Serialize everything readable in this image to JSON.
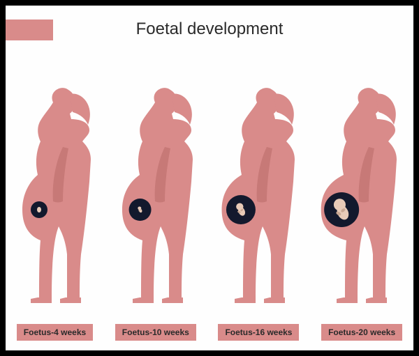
{
  "title": "Foetal development",
  "title_fontsize": 24,
  "title_color": "#2a2a2a",
  "colors": {
    "silhouette": "#d98b8a",
    "silhouette_shade": "#c77977",
    "title_bar": "#d98b8a",
    "label_bg": "#d98b8a",
    "womb": "#13192d",
    "fetus_body": "#e8cbb8",
    "fetus_shade": "#c9a893",
    "border": "#000000",
    "background": "#fefefe"
  },
  "label_fontsize": 12,
  "figure_width": 135,
  "figure_height": 330,
  "stages": [
    {
      "label": "Foetus-4 weeks",
      "weeks": 4,
      "belly_scale": 0.78,
      "womb_r": 12,
      "fetus_scale": 0.2
    },
    {
      "label": "Foetus-10 weeks",
      "weeks": 10,
      "belly_scale": 0.86,
      "womb_r": 16,
      "fetus_scale": 0.45
    },
    {
      "label": "Foetus-16 weeks",
      "weeks": 16,
      "belly_scale": 0.95,
      "womb_r": 21,
      "fetus_scale": 0.72
    },
    {
      "label": "Foetus-20 weeks",
      "weeks": 20,
      "belly_scale": 1.05,
      "womb_r": 25,
      "fetus_scale": 1.0
    }
  ],
  "type": "infographic"
}
